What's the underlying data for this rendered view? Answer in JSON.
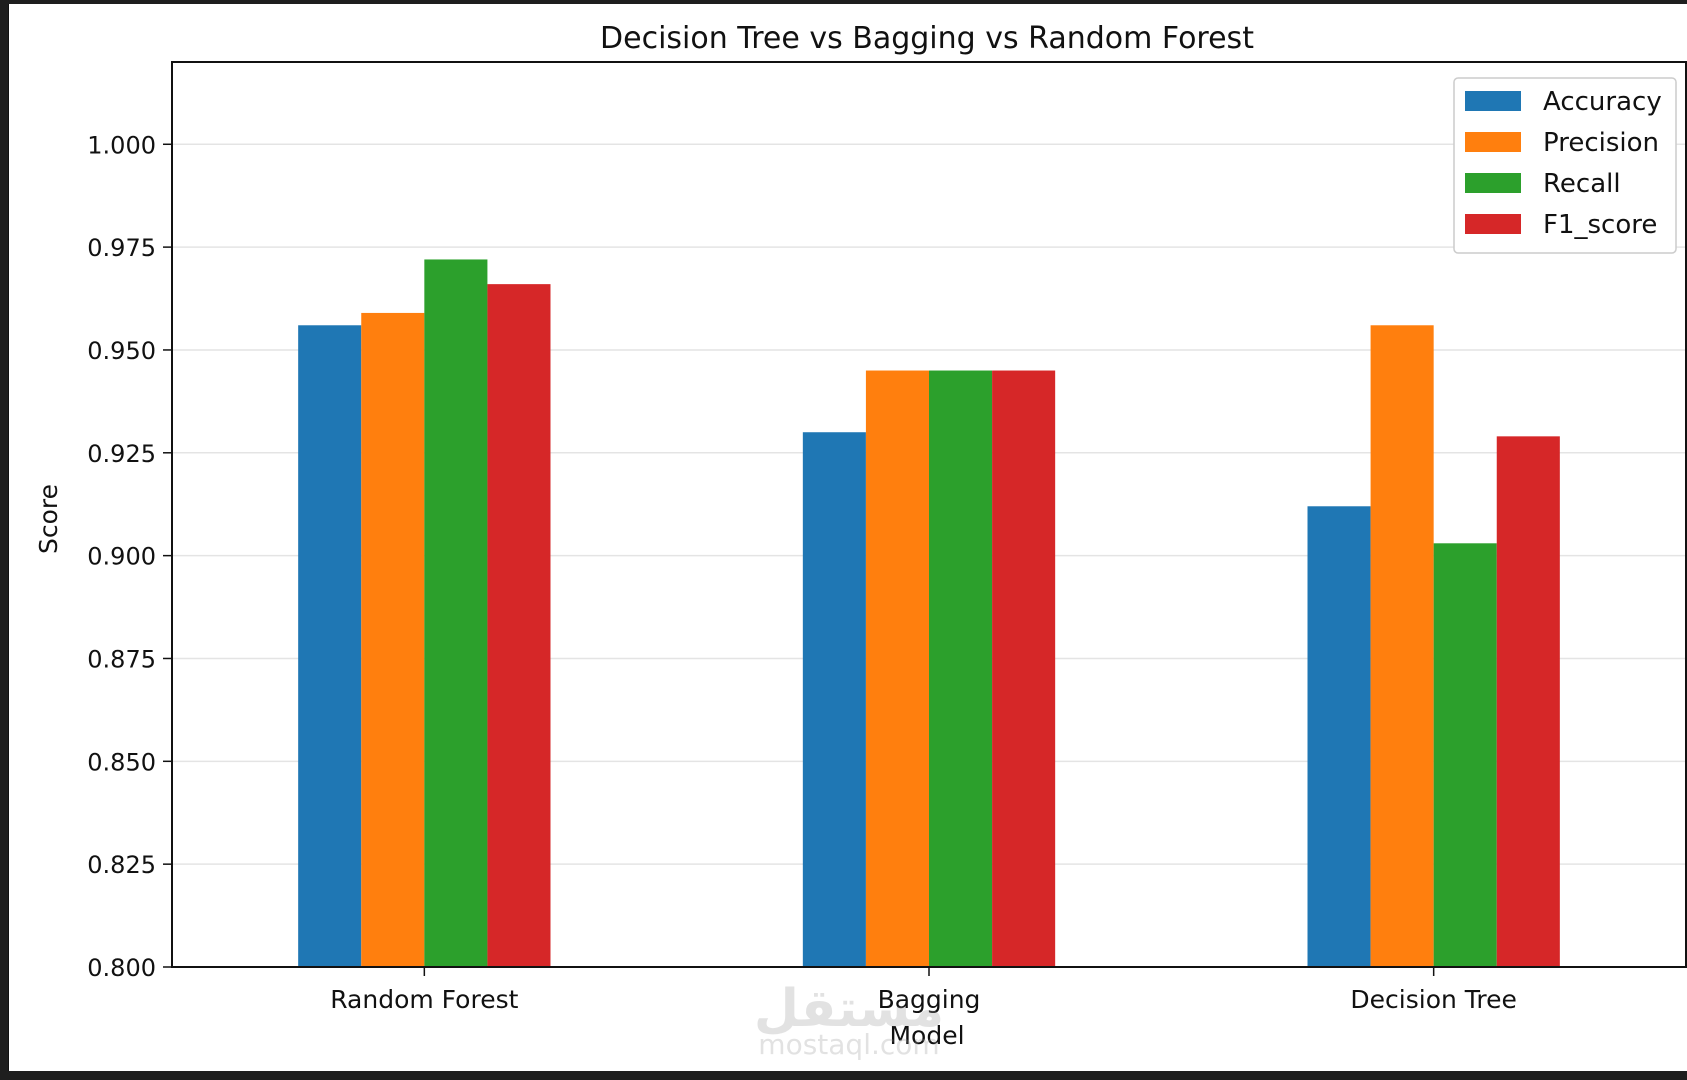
{
  "chart_data": {
    "type": "bar",
    "title": "Decision Tree vs Bagging vs Random Forest",
    "xlabel": "Model",
    "ylabel": "Score",
    "ylim": [
      0.8,
      1.02
    ],
    "yticks": [
      "0.800",
      "0.825",
      "0.850",
      "0.875",
      "0.900",
      "0.925",
      "0.950",
      "0.975",
      "1.000"
    ],
    "categories": [
      "Random Forest",
      "Bagging",
      "Decision Tree"
    ],
    "series": [
      {
        "name": "Accuracy",
        "color": "#1f77b4",
        "values": [
          0.956,
          0.93,
          0.912
        ]
      },
      {
        "name": "Precision",
        "color": "#ff7f0e",
        "values": [
          0.959,
          0.945,
          0.956
        ]
      },
      {
        "name": "Recall",
        "color": "#2ca02c",
        "values": [
          0.972,
          0.945,
          0.903
        ]
      },
      {
        "name": "F1_score",
        "color": "#d62728",
        "values": [
          0.966,
          0.945,
          0.929
        ]
      }
    ],
    "grid": "horizontal",
    "legend": "top-right"
  },
  "watermark": {
    "arabic": "مستقل",
    "latin": "mostaql.com"
  }
}
